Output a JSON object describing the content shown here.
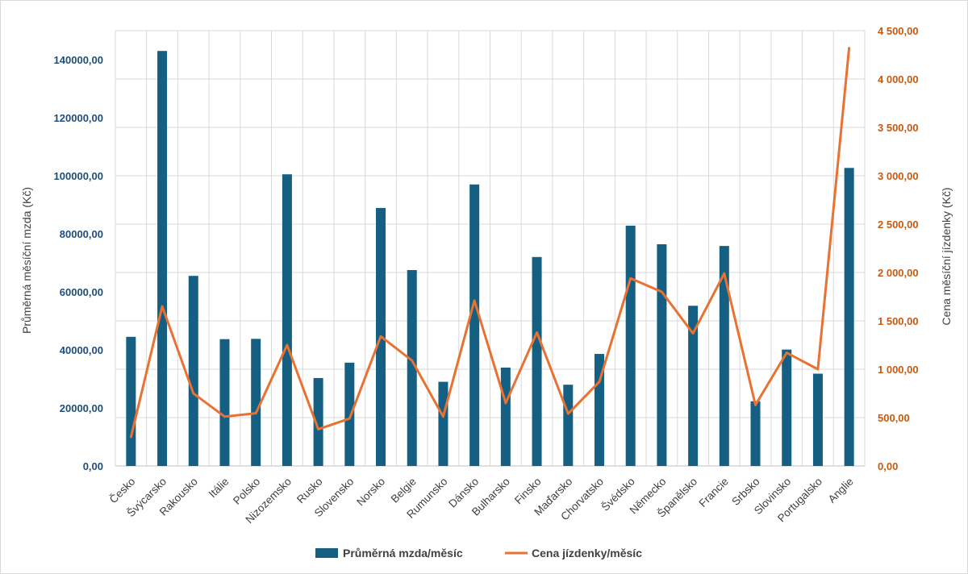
{
  "chart_data": {
    "type": "bar",
    "categories": [
      "Česko",
      "Švýcarsko",
      "Rakousko",
      "Itálie",
      "Polsko",
      "Nizozemsko",
      "Rusko",
      "Slovensko",
      "Norsko",
      "Belgie",
      "Rumunsko",
      "Dánsko",
      "Bulharsko",
      "Finsko",
      "Maďarsko",
      "Chorvatsko",
      "Švédsko",
      "Německo",
      "Španělsko",
      "Francie",
      "Srbsko",
      "Slovinsko",
      "Portugalsko",
      "Anglie"
    ],
    "series": [
      {
        "name": "Průměrná mzda/měsíc",
        "type": "bar",
        "axis": "left",
        "color": "#156082",
        "values": [
          44500,
          143000,
          65500,
          43700,
          43800,
          100500,
          30300,
          35600,
          88900,
          67500,
          29000,
          97000,
          33900,
          72000,
          28000,
          38600,
          82800,
          76400,
          55200,
          75800,
          22300,
          40100,
          31800,
          102700
        ]
      },
      {
        "name": "Cena jízdenky/měsíc",
        "type": "line",
        "axis": "right",
        "color": "#e97132",
        "values": [
          300,
          1650,
          750,
          510,
          545,
          1250,
          380,
          490,
          1340,
          1090,
          510,
          1710,
          650,
          1380,
          540,
          870,
          1940,
          1800,
          1370,
          1990,
          630,
          1170,
          1000,
          4320
        ]
      }
    ],
    "ylim_left": [
      0,
      150000
    ],
    "ylim_right": [
      0,
      4500
    ],
    "yticks_left": [
      "0,00",
      "20000,00",
      "40000,00",
      "60000,00",
      "80000,00",
      "100000,00",
      "120000,00",
      "140000,00"
    ],
    "yticks_right": [
      "0,00",
      "500,00",
      "1 000,00",
      "1 500,00",
      "2 000,00",
      "2 500,00",
      "3 000,00",
      "3 500,00",
      "4 000,00",
      "4 500,00"
    ],
    "ylabel_left": "Průměrná měsíční mzda (Kč)",
    "ylabel_right": "Cena měsíční jízdenky (Kč)",
    "xlabel": "",
    "title": "",
    "grid": true,
    "legend": "bottom"
  }
}
